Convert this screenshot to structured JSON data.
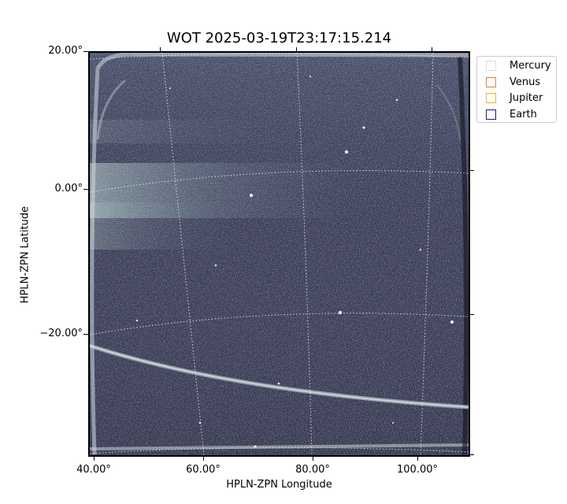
{
  "title": "WOT 2025-03-19T23:17:15.214",
  "image": {
    "description_colormap": "bone",
    "grid": true
  },
  "axes": {
    "xlabel": "HPLN-ZPN Longitude",
    "ylabel": "HPLN-ZPN Latitude",
    "xticks": [
      "40.00°",
      "60.00°",
      "80.00°",
      "100.00°"
    ],
    "yticks": [
      "20.00°",
      "0.00°",
      "−20.00°"
    ]
  },
  "legend": {
    "placement": "outside-top-right",
    "items": [
      {
        "label": "Mercury",
        "color": "#dddddd"
      },
      {
        "label": "Venus",
        "color": "#e07b39"
      },
      {
        "label": "Jupiter",
        "color": "#e8b730"
      },
      {
        "label": "Earth",
        "color": "#1a1a8c"
      }
    ]
  }
}
